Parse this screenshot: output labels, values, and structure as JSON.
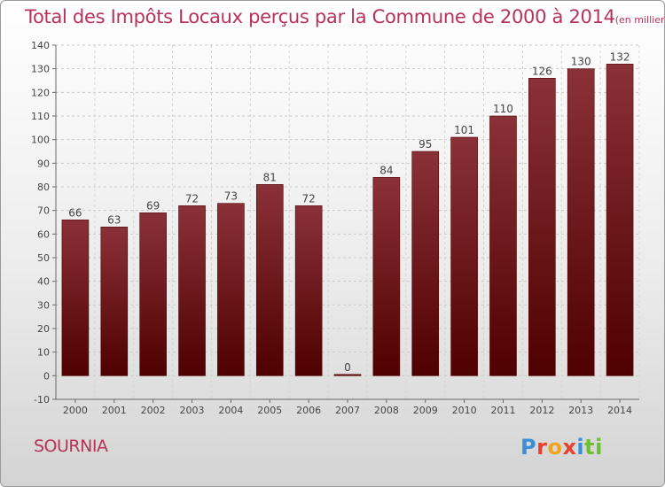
{
  "chart_data": {
    "type": "bar",
    "title": "Total des Impôts Locaux perçus par la Commune de 2000 à 2014",
    "subtitle": "(en milliers d'€)",
    "categories": [
      "2000",
      "2001",
      "2002",
      "2003",
      "2004",
      "2005",
      "2006",
      "2007",
      "2008",
      "2009",
      "2010",
      "2011",
      "2012",
      "2013",
      "2014"
    ],
    "values": [
      66,
      63,
      69,
      72,
      73,
      81,
      72,
      0,
      84,
      95,
      101,
      110,
      126,
      130,
      132
    ],
    "ylim": [
      -10,
      140
    ],
    "yticks": [
      -10,
      0,
      10,
      20,
      30,
      40,
      50,
      60,
      70,
      80,
      90,
      100,
      110,
      120,
      130,
      140
    ],
    "grid": true,
    "xlabel": "",
    "ylabel": "",
    "colors": {
      "bar_top": "#8a3138",
      "bar_bottom": "#4f0000",
      "title": "#b8325a",
      "label": "#444444"
    }
  },
  "footer": {
    "commune": "SOURNIA",
    "brand": [
      {
        "ch": "P",
        "color": "#3b8fd6"
      },
      {
        "ch": "r",
        "color": "#e8412d"
      },
      {
        "ch": "o",
        "color": "#f2a51c"
      },
      {
        "ch": "x",
        "color": "#e8412d"
      },
      {
        "ch": "i",
        "color": "#3b8fd6"
      },
      {
        "ch": "t",
        "color": "#6cbf2d"
      },
      {
        "ch": "i",
        "color": "#6cbf2d"
      }
    ]
  }
}
